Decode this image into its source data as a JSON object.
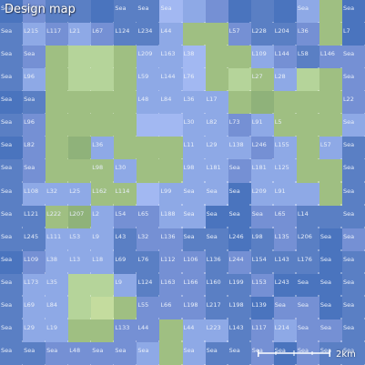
{
  "title": "Design map",
  "scale_label": "2km",
  "colors": {
    "S": "#4a74be",
    "D": "#5a7fc4",
    "E": "#7590d4",
    "L": "#8ea9e6",
    "P": "#a2b8f2",
    "G": "#9fbf82",
    "H": "#b5d49a",
    "K": "#8fb27a",
    "N": "#c4dc9e",
    "label": "#e8eef9"
  },
  "grid": {
    "rows": 16,
    "cols": 16,
    "colors": [
      [
        "S",
        "E",
        "D",
        "D",
        "S",
        "D",
        "D",
        "P",
        "L",
        "E",
        "S",
        "D",
        "S",
        "L",
        "G",
        "S"
      ],
      [
        "D",
        "L",
        "E",
        "L",
        "E",
        "D",
        "D",
        "L",
        "G",
        "G",
        "E",
        "D",
        "D",
        "E",
        "G",
        "S"
      ],
      [
        "D",
        "E",
        "G",
        "H",
        "H",
        "G",
        "L",
        "L",
        "P",
        "G",
        "G",
        "L",
        "E",
        "D",
        "E",
        "E"
      ],
      [
        "D",
        "L",
        "G",
        "H",
        "H",
        "G",
        "L",
        "L",
        "P",
        "G",
        "H",
        "G",
        "L",
        "H",
        "G",
        "E"
      ],
      [
        "S",
        "D",
        "G",
        "G",
        "G",
        "G",
        "L",
        "L",
        "L",
        "L",
        "G",
        "K",
        "G",
        "G",
        "G",
        "E"
      ],
      [
        "D",
        "E",
        "G",
        "G",
        "G",
        "G",
        "P",
        "P",
        "L",
        "L",
        "E",
        "L",
        "G",
        "G",
        "G",
        "L"
      ],
      [
        "S",
        "E",
        "G",
        "K",
        "L",
        "G",
        "G",
        "G",
        "L",
        "L",
        "L",
        "E",
        "L",
        "G",
        "L",
        "D"
      ],
      [
        "D",
        "E",
        "G",
        "G",
        "G",
        "L",
        "G",
        "G",
        "L",
        "L",
        "E",
        "L",
        "L",
        "G",
        "G",
        "D"
      ],
      [
        "D",
        "L",
        "L",
        "L",
        "G",
        "G",
        "P",
        "L",
        "L",
        "L",
        "S",
        "L",
        "L",
        "L",
        "G",
        "D"
      ],
      [
        "D",
        "D",
        "G",
        "K",
        "L",
        "E",
        "E",
        "L",
        "L",
        "S",
        "S",
        "E",
        "E",
        "D",
        "D",
        "D"
      ],
      [
        "D",
        "D",
        "L",
        "L",
        "L",
        "D",
        "E",
        "E",
        "D",
        "D",
        "S",
        "D",
        "E",
        "D",
        "S",
        "E"
      ],
      [
        "S",
        "E",
        "L",
        "L",
        "L",
        "D",
        "D",
        "E",
        "E",
        "D",
        "E",
        "D",
        "D",
        "D",
        "S",
        "D"
      ],
      [
        "D",
        "L",
        "L",
        "H",
        "H",
        "L",
        "D",
        "E",
        "E",
        "D",
        "D",
        "E",
        "S",
        "S",
        "S",
        "D"
      ],
      [
        "D",
        "L",
        "L",
        "H",
        "N",
        "G",
        "E",
        "E",
        "E",
        "D",
        "D",
        "S",
        "E",
        "E",
        "S",
        "D"
      ],
      [
        "D",
        "L",
        "L",
        "G",
        "G",
        "E",
        "E",
        "G",
        "L",
        "L",
        "D",
        "E",
        "L",
        "E",
        "E",
        "D"
      ],
      [
        "D",
        "D",
        "E",
        "E",
        "E",
        "E",
        "L",
        "G",
        "L",
        "D",
        "D",
        "E",
        "S",
        "E",
        "D",
        "D"
      ]
    ],
    "labels": [
      [
        "Sea",
        "Sea",
        "",
        "",
        "",
        "Sea",
        "Sea",
        "Sea",
        "",
        "",
        "",
        "",
        "",
        "Sea",
        "",
        "Sea"
      ],
      [
        "Sea",
        "L215",
        "L117",
        "L21",
        "L67",
        "L124",
        "L234",
        "L44",
        "",
        "",
        "L57",
        "L228",
        "L204",
        "L36",
        "",
        "L7"
      ],
      [
        "Sea",
        "Sea",
        "",
        "",
        "",
        "",
        "L209",
        "L163",
        "L38",
        "",
        "",
        "L109",
        "L144",
        "L58",
        "L146",
        "Sea"
      ],
      [
        "Sea",
        "L96",
        "",
        "",
        "",
        "",
        "L59",
        "L144",
        "L76",
        "",
        "",
        "L27",
        "L28",
        "",
        "",
        "Sea"
      ],
      [
        "Sea",
        "Sea",
        "",
        "",
        "",
        "",
        "L48",
        "L84",
        "L36",
        "L17",
        "",
        "",
        "",
        "",
        "",
        "L22"
      ],
      [
        "Sea",
        "L96",
        "",
        "",
        "",
        "",
        "",
        "",
        "L30",
        "L82",
        "L73",
        "L91",
        "L5",
        "",
        "",
        "Sea"
      ],
      [
        "Sea",
        "L82",
        "",
        "",
        "L36",
        "",
        "",
        "",
        "L11",
        "L29",
        "L138",
        "L246",
        "L155",
        "",
        "L57",
        "Sea"
      ],
      [
        "Sea",
        "Sea",
        "",
        "",
        "L98",
        "L30",
        "",
        "",
        "L98",
        "L181",
        "Sea",
        "L181",
        "L125",
        "",
        "",
        "Sea"
      ],
      [
        "Sea",
        "L108",
        "L32",
        "L25",
        "L162",
        "L114",
        "",
        "L99",
        "Sea",
        "Sea",
        "Sea",
        "L209",
        "L91",
        "",
        "",
        "Sea"
      ],
      [
        "Sea",
        "L121",
        "L222",
        "L207",
        "L2",
        "L54",
        "L65",
        "L188",
        "Sea",
        "Sea",
        "Sea",
        "Sea",
        "L65",
        "L14",
        "",
        "Sea"
      ],
      [
        "Sea",
        "L245",
        "L111",
        "L53",
        "L9",
        "L43",
        "L32",
        "L136",
        "Sea",
        "Sea",
        "L246",
        "L98",
        "L135",
        "L206",
        "Sea",
        "Sea"
      ],
      [
        "Sea",
        "L109",
        "L38",
        "L13",
        "L18",
        "L69",
        "L76",
        "L112",
        "L106",
        "L136",
        "L244",
        "L154",
        "L143",
        "L176",
        "Sea",
        "Sea"
      ],
      [
        "Sea",
        "L173",
        "L35",
        "",
        "",
        "L9",
        "L124",
        "L163",
        "L166",
        "L160",
        "L199",
        "L153",
        "L243",
        "Sea",
        "Sea",
        "Sea"
      ],
      [
        "Sea",
        "L69",
        "L84",
        "",
        "",
        "",
        "L55",
        "L66",
        "L198",
        "L217",
        "L198",
        "L139",
        "Sea",
        "Sea",
        "Sea",
        "Sea"
      ],
      [
        "Sea",
        "L29",
        "L19",
        "",
        "",
        "L133",
        "L44",
        "",
        "L44",
        "L223",
        "L143",
        "L117",
        "L214",
        "Sea",
        "Sea",
        "Sea"
      ],
      [
        "Sea",
        "Sea",
        "Sea",
        "L48",
        "Sea",
        "Sea",
        "Sea",
        "",
        "Sea",
        "Sea",
        "Sea",
        "Sea",
        "Sea",
        "Sea",
        "Sea",
        "Sea"
      ]
    ]
  }
}
